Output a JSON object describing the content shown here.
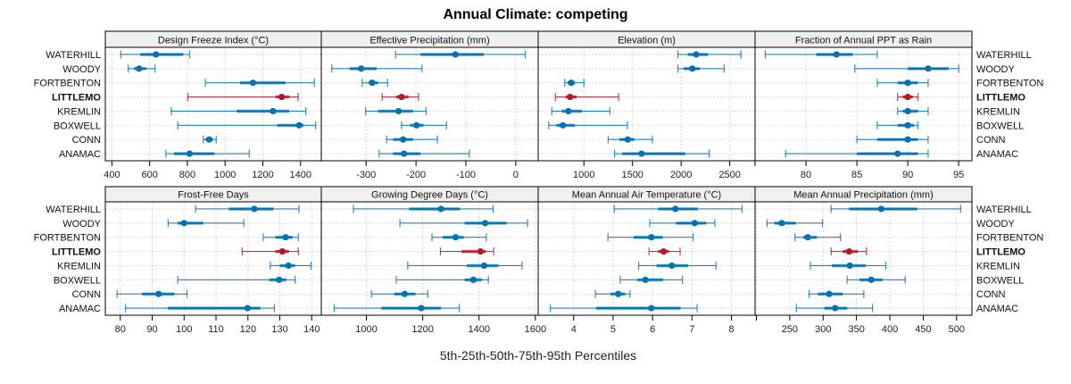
{
  "chart_data": {
    "type": "interval-dotplot",
    "title": "Annual Climate: competing",
    "xlabel": "5th-25th-50th-75th-95th Percentiles",
    "highlight_series": "LITTLEMO",
    "colors": {
      "default": "#0072b2",
      "highlight": "#b2182b",
      "strip": "#f0f0f0",
      "grid": "#c8c8c8"
    },
    "categories": [
      "WATERHILL",
      "WOODY",
      "FORTBENTON",
      "LITTLEMO",
      "KREMLIN",
      "BOXWELL",
      "CONN",
      "ANAMAC"
    ],
    "panels": [
      {
        "title": "Design Freeze Index (°C)",
        "xlim": [
          365,
          1510
        ],
        "ticks": [
          400,
          600,
          800,
          1000,
          1200,
          1400
        ],
        "values": [
          [
            447,
            550,
            634,
            778,
            812
          ],
          [
            487,
            517,
            544,
            583,
            629
          ],
          [
            895,
            1079,
            1148,
            1320,
            1473
          ],
          [
            803,
            1268,
            1300,
            1342,
            1387
          ],
          [
            715,
            1062,
            1254,
            1340,
            1428
          ],
          [
            749,
            1276,
            1393,
            1416,
            1480
          ],
          [
            884,
            895,
            916,
            935,
            953
          ],
          [
            686,
            729,
            812,
            944,
            1128
          ]
        ]
      },
      {
        "title": "Effective Precipitation (mm)",
        "xlim": [
          -390,
          45
        ],
        "ticks": [
          -300,
          -200,
          -100,
          0
        ],
        "values": [
          [
            -241,
            -191,
            -121,
            -64,
            19
          ],
          [
            -369,
            -333,
            -310,
            -279,
            -188
          ],
          [
            -308,
            -295,
            -288,
            -276,
            -257
          ],
          [
            -268,
            -240,
            -229,
            -215,
            -195
          ],
          [
            -301,
            -276,
            -235,
            -206,
            -180
          ],
          [
            -229,
            -212,
            -199,
            -185,
            -139
          ],
          [
            -259,
            -246,
            -226,
            -206,
            -157
          ],
          [
            -274,
            -246,
            -224,
            -191,
            -93
          ]
        ]
      },
      {
        "title": "Elevation (m)",
        "xlim": [
          530,
          2760
        ],
        "ticks": [
          1000,
          1500,
          2000,
          2500
        ],
        "values": [
          [
            1967,
            2068,
            2155,
            2275,
            2615
          ],
          [
            1967,
            2025,
            2115,
            2191,
            2442
          ],
          [
            803,
            833,
            870,
            907,
            1000
          ],
          [
            707,
            812,
            858,
            926,
            1358
          ],
          [
            670,
            772,
            840,
            979,
            1266
          ],
          [
            639,
            717,
            784,
            907,
            1448
          ],
          [
            1250,
            1364,
            1451,
            1519,
            1704
          ],
          [
            1315,
            1395,
            1593,
            2043,
            2290
          ]
        ]
      },
      {
        "title": "Fraction of Annual PPT as Rain",
        "xlim": [
          75,
          96.3
        ],
        "ticks": [
          75,
          80,
          85,
          90,
          95
        ],
        "ticklabels": [
          "",
          "80",
          "85",
          "90",
          "95"
        ],
        "values": [
          [
            76,
            81,
            83,
            84.6,
            87
          ],
          [
            84.8,
            90,
            92,
            94,
            95
          ],
          [
            87,
            89,
            90,
            91,
            92
          ],
          [
            89,
            89.5,
            90,
            90.5,
            91
          ],
          [
            89,
            89.5,
            90,
            91,
            92
          ],
          [
            87,
            89,
            90,
            90.6,
            91
          ],
          [
            85,
            87,
            90,
            91,
            92
          ],
          [
            78,
            85,
            89,
            91,
            92
          ]
        ]
      },
      {
        "title": "Frost-Free Days",
        "xlim": [
          75.3,
          143
        ],
        "ticks": [
          80,
          90,
          100,
          110,
          120,
          130,
          140
        ],
        "values": [
          [
            103.6,
            114,
            122,
            128,
            136
          ],
          [
            95,
            98,
            100,
            106,
            118.7
          ],
          [
            124.8,
            128.6,
            131.8,
            134,
            135.8
          ],
          [
            118.2,
            128.6,
            130.8,
            132.9,
            135.8
          ],
          [
            127,
            130,
            132.7,
            134.8,
            139.8
          ],
          [
            98,
            126.7,
            129.8,
            132,
            134.8
          ],
          [
            79,
            86.8,
            92,
            97,
            100.9
          ],
          [
            81.6,
            94.9,
            119.9,
            123.9,
            128.3
          ]
        ]
      },
      {
        "title": "Growing Degree Days (°C)",
        "xlim": [
          840,
          1610
        ],
        "ticks": [
          1000,
          1200,
          1400,
          1600
        ],
        "values": [
          [
            954,
            1152,
            1265,
            1332,
            1450
          ],
          [
            1119,
            1349,
            1422,
            1498,
            1572
          ],
          [
            1233,
            1271,
            1317,
            1346,
            1426
          ],
          [
            1263,
            1338,
            1405,
            1424,
            1452
          ],
          [
            1147,
            1356,
            1418,
            1469,
            1553
          ],
          [
            1106,
            1349,
            1380,
            1410,
            1433
          ],
          [
            1018,
            1099,
            1136,
            1174,
            1218
          ],
          [
            886,
            1053,
            1195,
            1265,
            1330
          ]
        ]
      },
      {
        "title": "Mean Annual Air Temperature (°C)",
        "xlim": [
          3.1,
          8.6
        ],
        "ticks": [
          4,
          5,
          6,
          7,
          8
        ],
        "values": [
          [
            5.03,
            6.14,
            6.58,
            7.15,
            8.27
          ],
          [
            5.93,
            6.6,
            7.07,
            7.36,
            7.58
          ],
          [
            4.87,
            5.52,
            5.97,
            6.26,
            7.03
          ],
          [
            5.91,
            6.14,
            6.28,
            6.42,
            6.7
          ],
          [
            5.65,
            6.1,
            6.49,
            6.9,
            7.61
          ],
          [
            5.18,
            5.61,
            5.82,
            6.27,
            6.76
          ],
          [
            4.55,
            4.93,
            5.13,
            5.31,
            5.43
          ],
          [
            3.41,
            4.57,
            5.97,
            6.71,
            7.13
          ]
        ]
      },
      {
        "title": "Mean Annual Precipitation (mm)",
        "xlim": [
          198,
          523
        ],
        "ticks": [
          200,
          250,
          300,
          350,
          400,
          450,
          500
        ],
        "ticklabels": [
          "",
          "250",
          "300",
          "350",
          "400",
          "450",
          "500"
        ],
        "values": [
          [
            312,
            339,
            387,
            441,
            506
          ],
          [
            216,
            227,
            238,
            259,
            299
          ],
          [
            258,
            270,
            277,
            291,
            326
          ],
          [
            312,
            329.5,
            339,
            352,
            365
          ],
          [
            281,
            313,
            340,
            364,
            394
          ],
          [
            336,
            354.5,
            372,
            389,
            423
          ],
          [
            279,
            292,
            309,
            329.5,
            361
          ],
          [
            260,
            302,
            318,
            336,
            374
          ]
        ]
      }
    ]
  }
}
